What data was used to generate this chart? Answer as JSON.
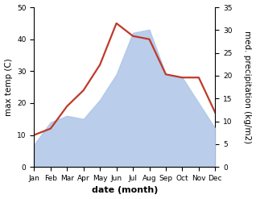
{
  "months": [
    "Jan",
    "Feb",
    "Mar",
    "Apr",
    "May",
    "Jun",
    "Jul",
    "Aug",
    "Sep",
    "Oct",
    "Nov",
    "Dec"
  ],
  "temp": [
    10,
    12,
    19,
    24,
    32,
    45,
    41,
    40,
    29,
    28,
    28,
    17
  ],
  "precip": [
    7,
    14,
    16,
    15,
    21,
    29,
    42,
    43,
    29,
    28,
    20,
    12
  ],
  "temp_color": "#c0392b",
  "precip_fill_color": "#aec6e8",
  "precip_fill_alpha": 0.85,
  "temp_ylim": [
    0,
    50
  ],
  "precip_ylim": [
    0,
    35
  ],
  "temp_yticks": [
    0,
    10,
    20,
    30,
    40,
    50
  ],
  "precip_yticks": [
    0,
    5,
    10,
    15,
    20,
    25,
    30,
    35
  ],
  "xlabel": "date (month)",
  "ylabel_left": "max temp (C)",
  "ylabel_right": "med. precipitation (kg/m2)",
  "bg_color": "#ffffff",
  "line_width": 1.6,
  "xlabel_fontsize": 8,
  "ylabel_fontsize": 7.5,
  "tick_fontsize": 6.5
}
